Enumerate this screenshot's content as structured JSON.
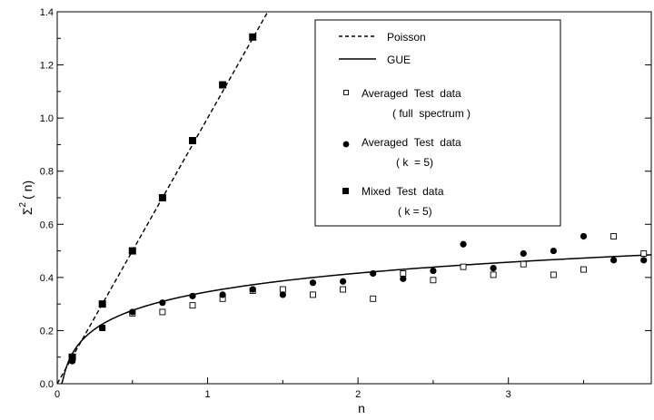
{
  "chart_data": {
    "type": "scatter",
    "title": "",
    "xlabel": "n",
    "ylabel_main": "Σ",
    "ylabel_sup": "2",
    "ylabel_tail": "( n)",
    "xlim": [
      0,
      3.95
    ],
    "ylim": [
      0,
      1.4
    ],
    "xticks": [
      0,
      1,
      2,
      3
    ],
    "yticks": [
      0.0,
      0.2,
      0.4,
      0.6,
      0.8,
      1.0,
      1.2,
      1.4
    ],
    "ytick_labels": [
      "0.0",
      "0.2",
      "0.4",
      "0.6",
      "0.8",
      "1.0",
      "1.2",
      "1.4"
    ],
    "grid": false,
    "legend_position": "top-right",
    "legend": [
      {
        "label": "Poisson",
        "marker": "dashed-line"
      },
      {
        "label": "GUE",
        "marker": "solid-line"
      },
      {
        "label": "Averaged  Test  data",
        "sublabel": "( full  spectrum )",
        "marker": "open-square"
      },
      {
        "label": "Averaged  Test  data",
        "sublabel": "( k  = 5)",
        "marker": "filled-circle"
      },
      {
        "label": "Mixed  Test  data",
        "sublabel": "( k = 5)",
        "marker": "filled-square"
      }
    ],
    "series": [
      {
        "marker": "open-square",
        "x": [
          0.1,
          0.3,
          0.5,
          0.7,
          0.9,
          1.1,
          1.3,
          1.5,
          1.7,
          1.9,
          2.1,
          2.3,
          2.5,
          2.7,
          2.9,
          3.1,
          3.3,
          3.5,
          3.7,
          3.9
        ],
        "y": [
          0.09,
          0.21,
          0.265,
          0.27,
          0.295,
          0.32,
          0.35,
          0.355,
          0.335,
          0.355,
          0.32,
          0.415,
          0.39,
          0.44,
          0.41,
          0.45,
          0.41,
          0.43,
          0.555,
          0.49
        ]
      },
      {
        "marker": "filled-circle",
        "x": [
          0.1,
          0.3,
          0.5,
          0.7,
          0.9,
          1.1,
          1.3,
          1.5,
          1.7,
          1.9,
          2.1,
          2.3,
          2.5,
          2.7,
          2.9,
          3.1,
          3.3,
          3.5,
          3.7,
          3.9
        ],
        "y": [
          0.085,
          0.21,
          0.27,
          0.305,
          0.33,
          0.335,
          0.355,
          0.335,
          0.38,
          0.385,
          0.415,
          0.395,
          0.425,
          0.525,
          0.435,
          0.49,
          0.5,
          0.555,
          0.465,
          0.465
        ]
      },
      {
        "marker": "filled-square",
        "x": [
          0.1,
          0.3,
          0.5,
          0.7,
          0.9,
          1.1,
          1.3
        ],
        "y": [
          0.1,
          0.3,
          0.5,
          0.7,
          0.915,
          1.125,
          1.305
        ]
      }
    ]
  }
}
